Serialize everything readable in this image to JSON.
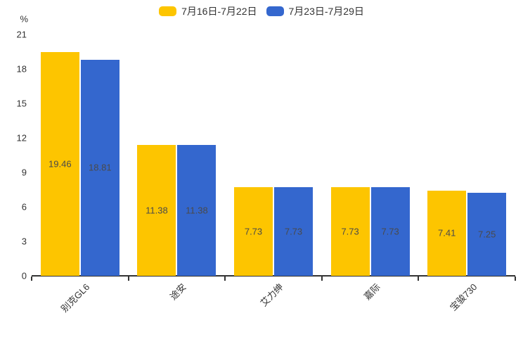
{
  "chart_data": {
    "type": "bar",
    "title": "",
    "unit_label": "%",
    "categories": [
      "别克GL6",
      "途安",
      "艾力绅",
      "嘉际",
      "宝骏730"
    ],
    "series": [
      {
        "name": "7月16日-7月22日",
        "color": "#fdc500",
        "values": [
          19.46,
          11.38,
          7.73,
          7.73,
          7.41
        ]
      },
      {
        "name": "7月23日-7月29日",
        "color": "#3467ce",
        "values": [
          18.81,
          11.38,
          7.73,
          7.73,
          7.25
        ]
      }
    ],
    "ylim": [
      0,
      21
    ],
    "yticks": [
      0,
      3,
      6,
      9,
      12,
      15,
      18,
      21
    ],
    "legend_position": "top-center",
    "grid": false,
    "value_labels": "centered-inside-bars",
    "x_label_rotation_deg": -45
  },
  "colors": {
    "background": "#ffffff",
    "axis": "#333333",
    "tick_label": "#333333",
    "value_label": "#4a4a4a",
    "legend_text": "#333333"
  }
}
